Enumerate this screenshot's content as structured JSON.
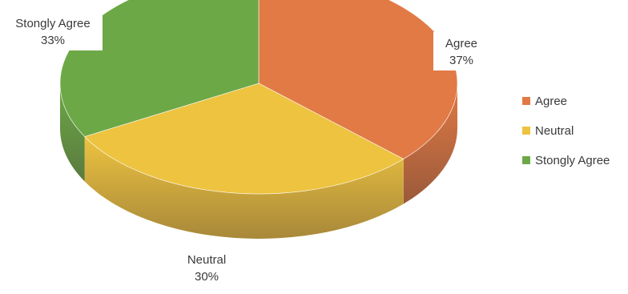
{
  "chart_data": {
    "type": "pie",
    "style": "3d",
    "title": "",
    "legend_position": "right",
    "categories": [
      "Agree",
      "Neutral",
      "Stongly Agree"
    ],
    "values": [
      37,
      30,
      33
    ],
    "value_labels": [
      "37%",
      "30%",
      "33%"
    ],
    "colors": [
      "#E27A45",
      "#EDC340",
      "#6DA847"
    ],
    "side_colors": [
      "#9A5A3A",
      "#A8883A",
      "#5A7A3E"
    ]
  }
}
